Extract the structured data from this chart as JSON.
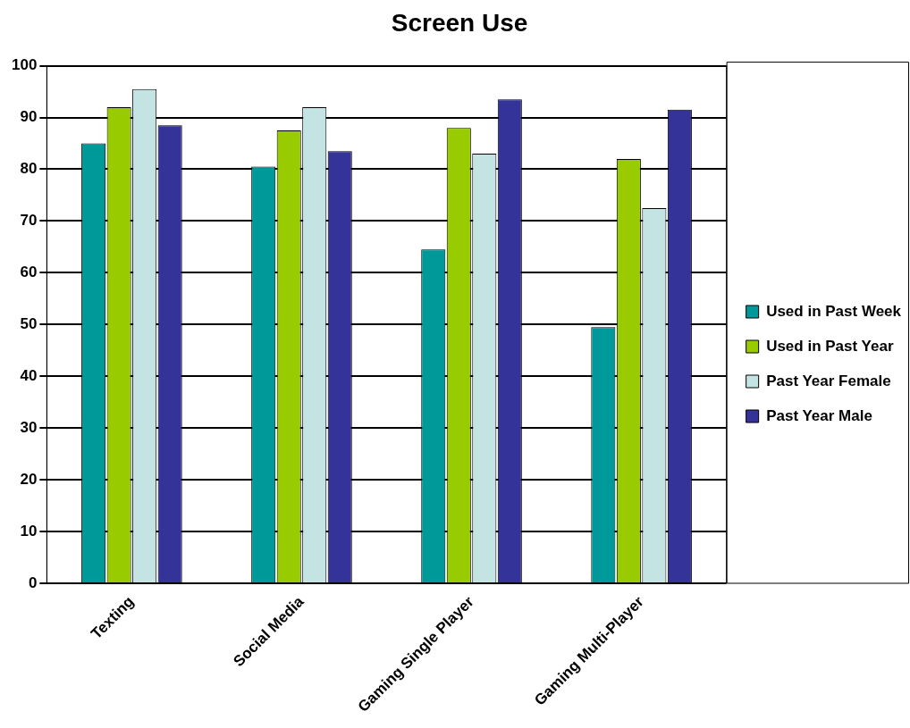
{
  "chart_data": {
    "type": "bar",
    "title": "Screen Use",
    "categories": [
      "Texting",
      "Social Media",
      "Gaming Single Player",
      "Gaming Multi-Player"
    ],
    "series": [
      {
        "name": "Used in Past Week",
        "color": "#009999",
        "values": [
          85,
          80.5,
          64.5,
          49.5
        ]
      },
      {
        "name": "Used in Past Year",
        "color": "#99cc00",
        "values": [
          92,
          87.5,
          88,
          82
        ]
      },
      {
        "name": "Past Year Female",
        "color": "#c4e4e4",
        "values": [
          95.5,
          92,
          83,
          72.5
        ]
      },
      {
        "name": "Past Year Male",
        "color": "#333399",
        "values": [
          88.5,
          83.5,
          93.5,
          91.5
        ]
      }
    ],
    "ylim": [
      0,
      100
    ],
    "yticks": [
      0,
      10,
      20,
      30,
      40,
      50,
      60,
      70,
      80,
      90,
      100
    ],
    "grid": "y",
    "legend": "right"
  }
}
